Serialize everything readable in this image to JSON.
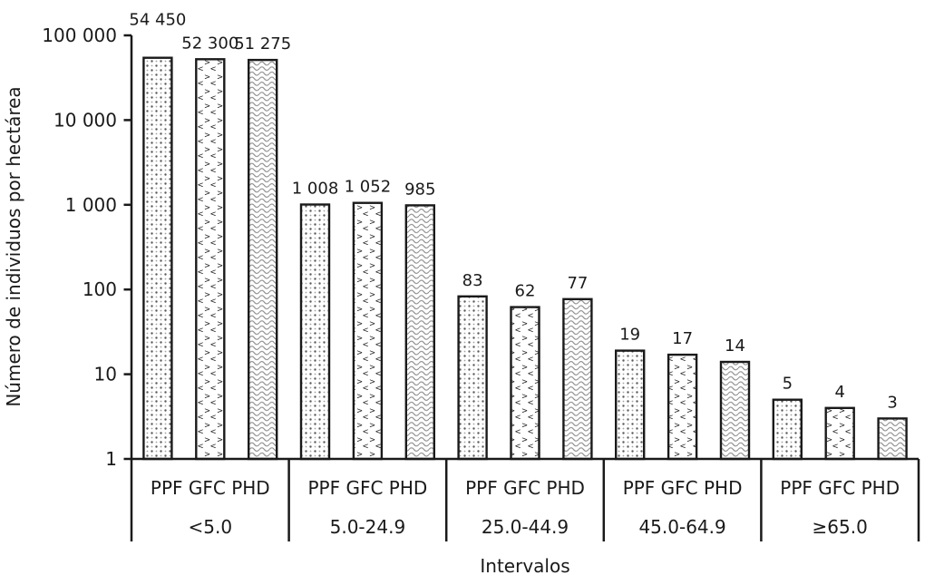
{
  "chart_data": {
    "type": "bar",
    "title": "",
    "ylabel": "Número de individuos por hectárea",
    "xlabel": "Intervalos",
    "y_scale": "log10",
    "ylim": [
      1,
      100000
    ],
    "y_tick_labels": [
      "1",
      "10",
      "100",
      "1 000",
      "10 000",
      "100 000"
    ],
    "categories": [
      "<5.0",
      "5.0-24.9",
      "25.0-44.9",
      "45.0-64.9",
      "≥65.0"
    ],
    "series": [
      {
        "name": "PPF",
        "fill_pattern": "dots",
        "values": [
          54450,
          1008,
          83,
          19,
          5
        ],
        "value_labels": [
          "54 450",
          "1 008",
          "83",
          "19",
          "5"
        ]
      },
      {
        "name": "GFC",
        "fill_pattern": "angle-marks",
        "values": [
          52300,
          1052,
          62,
          17,
          4
        ],
        "value_labels": [
          "52 300",
          "1 052",
          "62",
          "17",
          "4"
        ]
      },
      {
        "name": "PHD",
        "fill_pattern": "waves",
        "values": [
          51275,
          985,
          77,
          14,
          3
        ],
        "value_labels": [
          "51 275",
          "985",
          "77",
          "14",
          "3"
        ]
      }
    ],
    "grid": false,
    "legend_position": "none",
    "first_value_label_raised": true,
    "colors": {
      "axis_line": "#1a1a1a",
      "bar_outline": "#1a1a1a",
      "bar_fill_background": "#ffffff",
      "pattern_dark": "#5a5a5a",
      "pattern_light": "#a3a3a3",
      "pattern_mid": "#6e6e6e",
      "wave_stroke": "#8a8a8a",
      "text": "#1a1a1a",
      "background": "#ffffff"
    }
  }
}
